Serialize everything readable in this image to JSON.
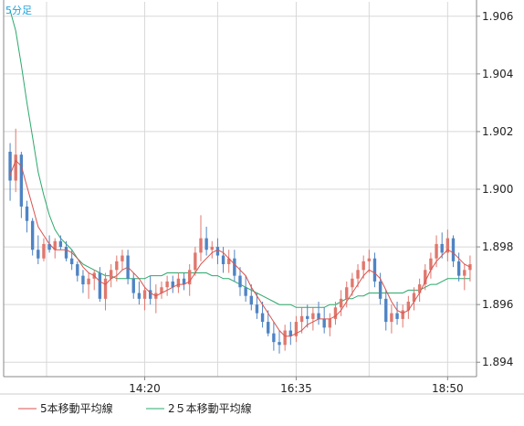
{
  "chart_data": {
    "type": "candlestick",
    "timeframe_label": "5分足",
    "y_ticks": [
      "1.906",
      "1.904",
      "1.902",
      "1.900",
      "1.898",
      "1.896",
      "1.894"
    ],
    "y_tick_values": [
      1.906,
      1.904,
      1.902,
      1.9,
      1.898,
      1.896,
      1.894
    ],
    "ylim": [
      1.8935,
      1.9065
    ],
    "x_tick_labels": [
      "14:20",
      "16:35",
      "18:50"
    ],
    "x_tick_index": [
      24,
      51,
      78
    ],
    "grid": true,
    "colors": {
      "up": "#e0776d",
      "down": "#4f84c4",
      "ma5": "#d9534f",
      "ma25": "#2ba86b",
      "grid": "#d8d8d8",
      "axis": "#888888"
    },
    "legend": [
      {
        "label": "5本移動平均線",
        "color": "#d9534f"
      },
      {
        "label": "2５本移動平均線",
        "color": "#2ba86b"
      }
    ],
    "candles": [
      [
        1.9013,
        1.9016,
        1.8996,
        1.9003
      ],
      [
        1.9003,
        1.9021,
        1.8999,
        1.9012
      ],
      [
        1.9012,
        1.9013,
        1.899,
        1.8994
      ],
      [
        1.8994,
        1.8996,
        1.8985,
        1.8989
      ],
      [
        1.8989,
        1.899,
        1.8977,
        1.8979
      ],
      [
        1.8979,
        1.8984,
        1.8974,
        1.8976
      ],
      [
        1.8976,
        1.8983,
        1.8975,
        1.8981
      ],
      [
        1.8981,
        1.8984,
        1.8978,
        1.8979
      ],
      [
        1.8979,
        1.8983,
        1.8976,
        1.8982
      ],
      [
        1.8982,
        1.8984,
        1.8979,
        1.898
      ],
      [
        1.898,
        1.8982,
        1.8975,
        1.8976
      ],
      [
        1.8976,
        1.8979,
        1.8972,
        1.8974
      ],
      [
        1.8974,
        1.8975,
        1.8968,
        1.897
      ],
      [
        1.897,
        1.8972,
        1.8964,
        1.8967
      ],
      [
        1.8967,
        1.8971,
        1.8962,
        1.8969
      ],
      [
        1.8969,
        1.8972,
        1.8965,
        1.8971
      ],
      [
        1.8971,
        1.8973,
        1.8961,
        1.8962
      ],
      [
        1.8962,
        1.8971,
        1.8958,
        1.8969
      ],
      [
        1.8969,
        1.8974,
        1.8966,
        1.8972
      ],
      [
        1.8972,
        1.8977,
        1.8968,
        1.8975
      ],
      [
        1.8975,
        1.8979,
        1.8972,
        1.8977
      ],
      [
        1.8977,
        1.8979,
        1.8967,
        1.8969
      ],
      [
        1.8969,
        1.8971,
        1.8962,
        1.8964
      ],
      [
        1.8964,
        1.8968,
        1.896,
        1.8962
      ],
      [
        1.8962,
        1.8966,
        1.8958,
        1.8965
      ],
      [
        1.8965,
        1.897,
        1.896,
        1.8962
      ],
      [
        1.8962,
        1.8967,
        1.8957,
        1.8964
      ],
      [
        1.8964,
        1.8968,
        1.8962,
        1.8966
      ],
      [
        1.8966,
        1.897,
        1.8963,
        1.8968
      ],
      [
        1.8968,
        1.897,
        1.8964,
        1.8966
      ],
      [
        1.8966,
        1.8971,
        1.8964,
        1.8969
      ],
      [
        1.8969,
        1.8971,
        1.8965,
        1.8967
      ],
      [
        1.8967,
        1.8974,
        1.8963,
        1.8972
      ],
      [
        1.8972,
        1.898,
        1.897,
        1.8978
      ],
      [
        1.8978,
        1.8991,
        1.8975,
        1.8983
      ],
      [
        1.8983,
        1.8987,
        1.8977,
        1.8979
      ],
      [
        1.8979,
        1.8982,
        1.8976,
        1.898
      ],
      [
        1.898,
        1.8983,
        1.8974,
        1.8977
      ],
      [
        1.8977,
        1.898,
        1.8971,
        1.8974
      ],
      [
        1.8974,
        1.8979,
        1.8971,
        1.8976
      ],
      [
        1.8976,
        1.8979,
        1.8968,
        1.897
      ],
      [
        1.897,
        1.8973,
        1.8963,
        1.8966
      ],
      [
        1.8966,
        1.897,
        1.8961,
        1.8963
      ],
      [
        1.8963,
        1.8967,
        1.8958,
        1.896
      ],
      [
        1.896,
        1.8964,
        1.8955,
        1.8957
      ],
      [
        1.8957,
        1.8961,
        1.8952,
        1.8954
      ],
      [
        1.8954,
        1.8958,
        1.8949,
        1.895
      ],
      [
        1.895,
        1.8954,
        1.8944,
        1.8947
      ],
      [
        1.8947,
        1.8951,
        1.8943,
        1.8946
      ],
      [
        1.8946,
        1.8953,
        1.8944,
        1.8951
      ],
      [
        1.8951,
        1.8954,
        1.8946,
        1.8949
      ],
      [
        1.8949,
        1.8956,
        1.8947,
        1.8954
      ],
      [
        1.8954,
        1.8959,
        1.895,
        1.8956
      ],
      [
        1.8956,
        1.896,
        1.8952,
        1.8955
      ],
      [
        1.8955,
        1.8959,
        1.8951,
        1.8957
      ],
      [
        1.8957,
        1.8961,
        1.8953,
        1.8955
      ],
      [
        1.8955,
        1.8959,
        1.895,
        1.8952
      ],
      [
        1.8952,
        1.8957,
        1.8949,
        1.8955
      ],
      [
        1.8955,
        1.8961,
        1.8953,
        1.8959
      ],
      [
        1.8959,
        1.8965,
        1.8956,
        1.8962
      ],
      [
        1.8962,
        1.8968,
        1.8959,
        1.8966
      ],
      [
        1.8966,
        1.8971,
        1.8963,
        1.8969
      ],
      [
        1.8969,
        1.8974,
        1.8966,
        1.8972
      ],
      [
        1.8972,
        1.8977,
        1.8969,
        1.8975
      ],
      [
        1.8975,
        1.8979,
        1.8971,
        1.8976
      ],
      [
        1.8976,
        1.8978,
        1.8966,
        1.8968
      ],
      [
        1.8968,
        1.8971,
        1.896,
        1.8962
      ],
      [
        1.8962,
        1.8965,
        1.8951,
        1.8954
      ],
      [
        1.8954,
        1.896,
        1.895,
        1.8957
      ],
      [
        1.8957,
        1.8961,
        1.8953,
        1.8955
      ],
      [
        1.8955,
        1.896,
        1.8952,
        1.8958
      ],
      [
        1.8958,
        1.8963,
        1.8955,
        1.8961
      ],
      [
        1.8961,
        1.8966,
        1.8958,
        1.8964
      ],
      [
        1.8964,
        1.8969,
        1.8961,
        1.8967
      ],
      [
        1.8967,
        1.8974,
        1.8965,
        1.8972
      ],
      [
        1.8972,
        1.8978,
        1.8969,
        1.8976
      ],
      [
        1.8976,
        1.8984,
        1.8973,
        1.8981
      ],
      [
        1.8981,
        1.8985,
        1.8976,
        1.8978
      ],
      [
        1.8978,
        1.8986,
        1.8975,
        1.8983
      ],
      [
        1.8983,
        1.8984,
        1.8973,
        1.8975
      ],
      [
        1.8975,
        1.8978,
        1.8968,
        1.897
      ],
      [
        1.897,
        1.8974,
        1.8965,
        1.8972
      ],
      [
        1.8972,
        1.8977,
        1.8968,
        1.8974
      ]
    ],
    "ma5": [
      1.9005,
      1.901,
      1.9008,
      1.9001,
      1.8994,
      1.8987,
      1.8984,
      1.8981,
      1.8979,
      1.8979,
      1.8979,
      1.8978,
      1.8976,
      1.8973,
      1.8971,
      1.897,
      1.8968,
      1.8967,
      1.8969,
      1.897,
      1.8972,
      1.8973,
      1.8971,
      1.8969,
      1.8966,
      1.8964,
      1.8963,
      1.8964,
      1.8965,
      1.8966,
      1.8967,
      1.8967,
      1.8968,
      1.8971,
      1.8974,
      1.8976,
      1.8978,
      1.8979,
      1.8978,
      1.8976,
      1.8974,
      1.8972,
      1.897,
      1.8966,
      1.8963,
      1.896,
      1.8957,
      1.8954,
      1.8951,
      1.8949,
      1.8949,
      1.895,
      1.8951,
      1.8953,
      1.8954,
      1.8955,
      1.8955,
      1.8955,
      1.8956,
      1.8958,
      1.8961,
      1.8964,
      1.8967,
      1.897,
      1.8972,
      1.8971,
      1.8969,
      1.8965,
      1.8961,
      1.8958,
      1.8957,
      1.8958,
      1.8961,
      1.8964,
      1.8968,
      1.8972,
      1.8975,
      1.8977,
      1.8979,
      1.8978,
      1.8976,
      1.8974,
      1.8973
    ],
    "ma25": [
      1.9062,
      1.9055,
      1.9043,
      1.903,
      1.9018,
      1.9006,
      1.8998,
      1.8991,
      1.8986,
      1.8983,
      1.8981,
      1.8979,
      1.8976,
      1.8974,
      1.8973,
      1.8972,
      1.8971,
      1.897,
      1.897,
      1.8969,
      1.8969,
      1.8969,
      1.8969,
      1.8969,
      1.8969,
      1.897,
      1.897,
      1.897,
      1.8971,
      1.8971,
      1.8971,
      1.8971,
      1.8971,
      1.8971,
      1.8971,
      1.8971,
      1.897,
      1.897,
      1.8969,
      1.8969,
      1.8968,
      1.8967,
      1.8966,
      1.8965,
      1.8964,
      1.8963,
      1.8962,
      1.8961,
      1.896,
      1.896,
      1.896,
      1.8959,
      1.8959,
      1.8959,
      1.8959,
      1.8959,
      1.8959,
      1.896,
      1.896,
      1.8961,
      1.8962,
      1.8962,
      1.8963,
      1.8963,
      1.8964,
      1.8964,
      1.8964,
      1.8964,
      1.8964,
      1.8964,
      1.8964,
      1.8965,
      1.8965,
      1.8965,
      1.8966,
      1.8967,
      1.8967,
      1.8968,
      1.8969,
      1.8969,
      1.8969,
      1.8969,
      1.8969
    ]
  }
}
